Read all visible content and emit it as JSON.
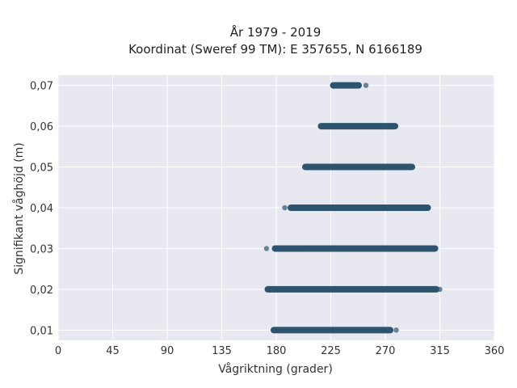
{
  "chart_data": {
    "type": "scatter",
    "title": "År 1979 - 2019",
    "subtitle": "Koordinat (Sweref 99 TM): E 357655, N 6166189",
    "xlabel": "Vågriktning (grader)",
    "ylabel": "Signifikant våghöjd (m)",
    "xlim": [
      0,
      360
    ],
    "ylim": [
      0.0075,
      0.0725
    ],
    "x_ticks": [
      0,
      45,
      90,
      135,
      180,
      225,
      270,
      315,
      360
    ],
    "x_tick_labels": [
      "0",
      "45",
      "90",
      "135",
      "180",
      "225",
      "270",
      "315",
      "360"
    ],
    "y_ticks": [
      0.01,
      0.02,
      0.03,
      0.04,
      0.05,
      0.06,
      0.07
    ],
    "y_tick_labels": [
      "0,01",
      "0,02",
      "0,03",
      "0,04",
      "0,05",
      "0,06",
      "0,07"
    ],
    "grid": true,
    "marker_color": "#2e5470",
    "plot_background": "#e8e8f0",
    "rows": [
      {
        "y": 0.07,
        "x_min": 227,
        "x_max": 248,
        "outliers": [
          254
        ]
      },
      {
        "y": 0.06,
        "x_min": 217,
        "x_max": 278,
        "outliers": []
      },
      {
        "y": 0.05,
        "x_min": 204,
        "x_max": 292,
        "outliers": []
      },
      {
        "y": 0.04,
        "x_min": 192,
        "x_max": 305,
        "outliers": [
          187
        ]
      },
      {
        "y": 0.03,
        "x_min": 179,
        "x_max": 311,
        "outliers": [
          172
        ]
      },
      {
        "y": 0.02,
        "x_min": 173,
        "x_max": 312,
        "outliers": [
          315
        ]
      },
      {
        "y": 0.01,
        "x_min": 178,
        "x_max": 274,
        "outliers": [
          279
        ]
      }
    ]
  }
}
